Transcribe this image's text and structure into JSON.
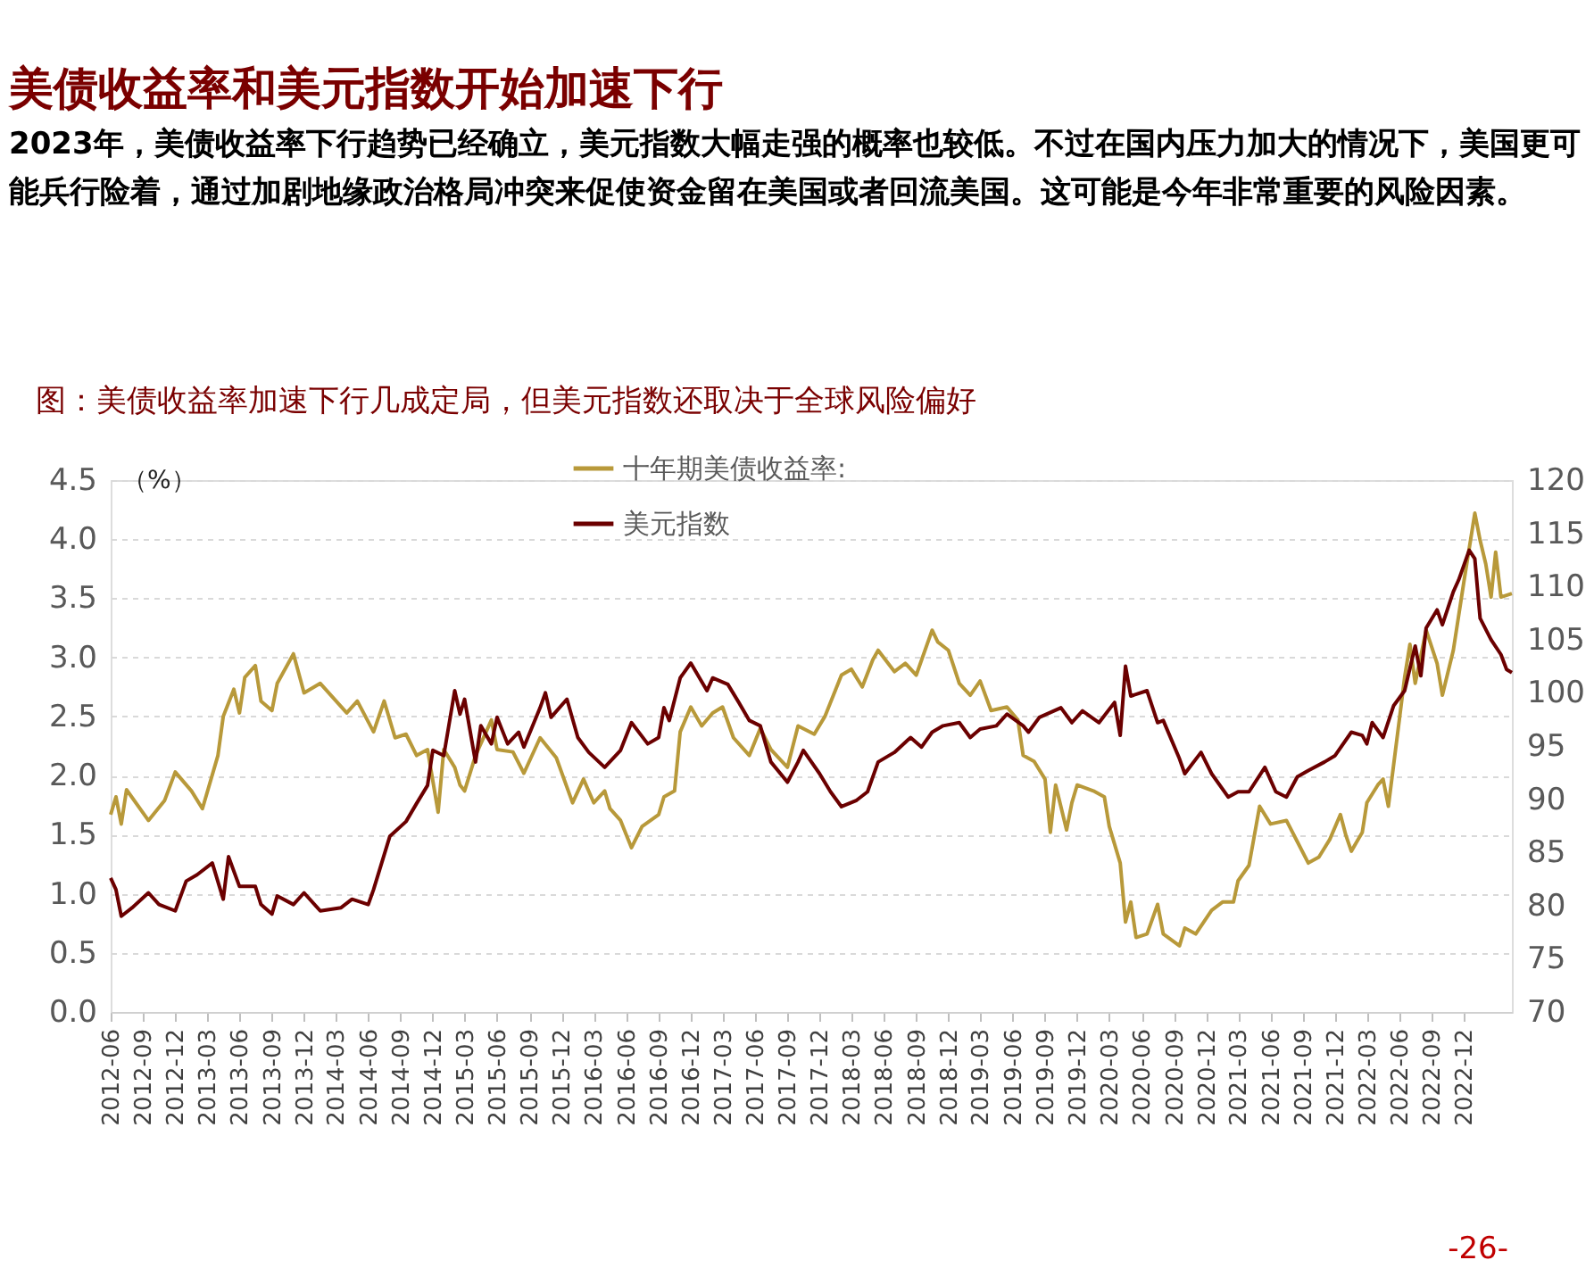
{
  "chart_data": {
    "type": "line",
    "title": "美债收益率和美元指数开始加速下行",
    "subtitle": "2023年，美债收益率下行趋势已经确立，美元指数大幅走强的概率也较低。不过在国内压力加大的情况下，美国更可能兵行险着，通过加剧地缘政治格局冲突来促使资金留在美国或者回流美国。这可能是今年非常重要的风险因素。",
    "annotations": [
      "图：美债收益率加速下行几成定局，但美元指数还取决于全球风险偏好",
      "-26-"
    ],
    "ylabel": "（%）",
    "xlim": [
      "2012-06-01",
      "2023-04-16"
    ],
    "xticks": [
      "2012-06",
      "2012-09",
      "2012-12",
      "2013-03",
      "2013-06",
      "2013-09",
      "2013-12",
      "2014-03",
      "2014-06",
      "2014-09",
      "2014-12",
      "2015-03",
      "2015-06",
      "2015-09",
      "2015-12",
      "2016-03",
      "2016-06",
      "2016-09",
      "2016-12",
      "2017-03",
      "2017-06",
      "2017-09",
      "2017-12",
      "2018-03",
      "2018-06",
      "2018-09",
      "2018-12",
      "2019-03",
      "2019-06",
      "2019-09",
      "2019-12",
      "2020-03",
      "2020-06",
      "2020-09",
      "2020-12",
      "2021-03",
      "2021-06",
      "2021-09",
      "2021-12",
      "2022-03",
      "2022-06",
      "2022-09",
      "2022-12"
    ],
    "ylim": [
      0,
      4.5
    ],
    "yticks": [
      {
        "value": 0,
        "label": "0.0"
      },
      0.5,
      {
        "value": 1,
        "label": "1.0"
      },
      1.5,
      {
        "value": 2,
        "label": "2.0"
      },
      2.5,
      {
        "value": 3,
        "label": "3.0"
      },
      3.5,
      {
        "value": 4,
        "label": "4.0"
      },
      4.5
    ],
    "y2lim": [
      70,
      120
    ],
    "y2ticks": [
      70,
      75,
      80,
      85,
      90,
      95,
      100,
      105,
      110,
      115,
      120
    ],
    "grid": "y",
    "legend": "top left",
    "line_style": "solid",
    "series": [
      {
        "name": "十年期美债收益率:",
        "color": "#b8993a",
        "x": [
          "2012-06-01",
          "2012-06-16",
          "2012-07-01",
          "2012-07-16",
          "2012-09-16",
          "2012-11-01",
          "2012-12-01",
          "2013-01-16",
          "2013-02-16",
          "2013-04-01",
          "2013-04-16",
          "2013-05-16",
          "2013-06-01",
          "2013-06-16",
          "2013-07-16",
          "2013-08-01",
          "2013-09-01",
          "2013-09-16",
          "2013-11-01",
          "2013-12-01",
          "2014-01-16",
          "2014-04-01",
          "2014-05-01",
          "2014-06-16",
          "2014-07-16",
          "2014-08-16",
          "2014-09-16",
          "2014-10-16",
          "2014-11-16",
          "2014-12-16",
          "2015-01-01",
          "2015-02-01",
          "2015-02-16",
          "2015-03-01",
          "2015-04-01",
          "2015-05-16",
          "2015-06-01",
          "2015-07-16",
          "2015-08-16",
          "2015-10-01",
          "2015-11-16",
          "2016-01-01",
          "2016-02-01",
          "2016-03-01",
          "2016-04-01",
          "2016-04-16",
          "2016-05-16",
          "2016-06-16",
          "2016-07-16",
          "2016-09-01",
          "2016-09-16",
          "2016-10-16",
          "2016-11-01",
          "2016-12-01",
          "2017-01-01",
          "2017-02-01",
          "2017-03-01",
          "2017-04-01",
          "2017-05-16",
          "2017-06-16",
          "2017-07-16",
          "2017-09-01",
          "2017-10-01",
          "2017-11-16",
          "2017-12-16",
          "2018-02-01",
          "2018-03-01",
          "2018-04-01",
          "2018-05-01",
          "2018-05-16",
          "2018-07-01",
          "2018-08-01",
          "2018-09-01",
          "2018-10-16",
          "2018-11-01",
          "2018-12-01",
          "2019-01-01",
          "2019-02-01",
          "2019-03-01",
          "2019-04-01",
          "2019-05-16",
          "2019-06-16",
          "2019-07-01",
          "2019-08-01",
          "2019-09-01",
          "2019-09-16",
          "2019-10-01",
          "2019-11-01",
          "2019-11-16",
          "2019-12-01",
          "2020-01-16",
          "2020-02-16",
          "2020-03-01",
          "2020-04-01",
          "2020-04-16",
          "2020-05-01",
          "2020-05-16",
          "2020-06-16",
          "2020-07-16",
          "2020-08-01",
          "2020-09-16",
          "2020-10-01",
          "2020-11-01",
          "2020-12-16",
          "2021-01-16",
          "2021-02-16",
          "2021-03-01",
          "2021-04-01",
          "2021-05-01",
          "2021-06-01",
          "2021-07-16",
          "2021-08-16",
          "2021-09-16",
          "2021-10-16",
          "2021-11-16",
          "2021-12-16",
          "2022-01-01",
          "2022-01-16",
          "2022-02-16",
          "2022-03-01",
          "2022-04-01",
          "2022-04-16",
          "2022-05-01",
          "2022-06-01",
          "2022-06-16",
          "2022-07-01",
          "2022-07-16",
          "2022-08-16",
          "2022-09-16",
          "2022-10-01",
          "2022-11-01",
          "2022-12-01",
          "2023-01-01",
          "2023-01-16",
          "2023-02-01",
          "2023-02-16",
          "2023-03-01",
          "2023-03-16",
          "2023-04-16"
        ],
        "values": [
          1.67,
          1.82,
          1.59,
          1.88,
          1.62,
          1.79,
          2.03,
          1.87,
          1.72,
          2.17,
          2.5,
          2.73,
          2.53,
          2.83,
          2.93,
          2.63,
          2.55,
          2.78,
          3.03,
          2.7,
          2.78,
          2.53,
          2.63,
          2.37,
          2.63,
          2.32,
          2.35,
          2.17,
          2.22,
          1.69,
          2.22,
          2.07,
          1.92,
          1.87,
          2.17,
          2.47,
          2.22,
          2.2,
          2.02,
          2.32,
          2.15,
          1.77,
          1.97,
          1.77,
          1.87,
          1.72,
          1.62,
          1.39,
          1.57,
          1.67,
          1.82,
          1.87,
          2.37,
          2.58,
          2.42,
          2.53,
          2.58,
          2.32,
          2.17,
          2.4,
          2.22,
          2.07,
          2.42,
          2.35,
          2.5,
          2.85,
          2.9,
          2.75,
          2.98,
          3.06,
          2.88,
          2.95,
          2.85,
          3.23,
          3.13,
          3.06,
          2.78,
          2.68,
          2.8,
          2.55,
          2.58,
          2.47,
          2.17,
          2.12,
          1.97,
          1.52,
          1.92,
          1.54,
          1.77,
          1.92,
          1.87,
          1.82,
          1.57,
          1.26,
          0.76,
          0.93,
          0.63,
          0.66,
          0.91,
          0.66,
          0.56,
          0.71,
          0.66,
          0.86,
          0.93,
          0.93,
          1.11,
          1.24,
          1.74,
          1.59,
          1.62,
          1.44,
          1.26,
          1.31,
          1.46,
          1.67,
          1.49,
          1.36,
          1.52,
          1.77,
          1.92,
          1.97,
          1.74,
          2.47,
          2.83,
          3.11,
          2.78,
          3.23,
          2.95,
          2.68,
          3.06,
          3.64,
          4.22,
          3.99,
          3.79,
          3.51,
          3.89,
          3.51,
          3.54
        ]
      },
      {
        "name": "美元指数",
        "color": "#6b0000",
        "axis": "y2",
        "x": [
          "2012-06-01",
          "2012-06-16",
          "2012-07-01",
          "2012-08-01",
          "2012-09-16",
          "2012-10-16",
          "2012-12-01",
          "2013-01-01",
          "2013-02-01",
          "2013-03-16",
          "2013-04-16",
          "2013-05-01",
          "2013-06-01",
          "2013-07-16",
          "2013-08-01",
          "2013-09-01",
          "2013-09-16",
          "2013-11-01",
          "2013-12-01",
          "2014-01-16",
          "2014-03-16",
          "2014-04-16",
          "2014-06-01",
          "2014-06-16",
          "2014-08-01",
          "2014-09-16",
          "2014-10-16",
          "2014-11-16",
          "2014-12-01",
          "2015-01-01",
          "2015-02-01",
          "2015-02-16",
          "2015-03-01",
          "2015-04-01",
          "2015-04-16",
          "2015-05-16",
          "2015-06-01",
          "2015-07-01",
          "2015-08-01",
          "2015-08-16",
          "2015-10-01",
          "2015-10-16",
          "2015-11-01",
          "2015-12-16",
          "2016-01-16",
          "2016-02-16",
          "2016-04-01",
          "2016-05-16",
          "2016-06-16",
          "2016-08-01",
          "2016-09-01",
          "2016-09-16",
          "2016-10-01",
          "2016-11-01",
          "2016-12-01",
          "2017-01-16",
          "2017-02-01",
          "2017-03-16",
          "2017-04-16",
          "2017-05-16",
          "2017-06-16",
          "2017-07-16",
          "2017-09-01",
          "2017-10-01",
          "2017-10-16",
          "2017-12-01",
          "2018-01-01",
          "2018-02-01",
          "2018-03-16",
          "2018-04-16",
          "2018-05-16",
          "2018-07-01",
          "2018-08-16",
          "2018-09-16",
          "2018-10-16",
          "2018-11-16",
          "2019-01-01",
          "2019-02-01",
          "2019-03-01",
          "2019-04-16",
          "2019-05-16",
          "2019-07-01",
          "2019-07-16",
          "2019-08-16",
          "2019-10-16",
          "2019-11-16",
          "2019-12-16",
          "2020-02-01",
          "2020-03-16",
          "2020-04-01",
          "2020-04-16",
          "2020-05-01",
          "2020-06-16",
          "2020-07-16",
          "2020-08-01",
          "2020-09-16",
          "2020-10-01",
          "2020-11-16",
          "2020-12-16",
          "2021-02-01",
          "2021-03-01",
          "2021-04-01",
          "2021-05-16",
          "2021-06-16",
          "2021-07-16",
          "2021-08-16",
          "2021-09-16",
          "2021-11-01",
          "2021-12-01",
          "2022-01-16",
          "2022-02-16",
          "2022-03-01",
          "2022-03-16",
          "2022-04-16",
          "2022-05-16",
          "2022-06-16",
          "2022-07-16",
          "2022-08-01",
          "2022-08-16",
          "2022-09-16",
          "2022-10-01",
          "2022-11-01",
          "2022-11-16",
          "2022-12-16",
          "2023-01-01",
          "2023-01-16",
          "2023-02-16",
          "2023-03-16",
          "2023-04-01",
          "2023-04-16"
        ],
        "values": [
          82.6,
          81.5,
          79.0,
          79.8,
          81.2,
          80.1,
          79.5,
          82.3,
          82.9,
          84.0,
          80.6,
          84.6,
          81.8,
          81.8,
          80.1,
          79.2,
          80.9,
          80.1,
          81.2,
          79.5,
          79.8,
          80.6,
          80.1,
          81.5,
          86.5,
          87.9,
          89.6,
          91.3,
          94.6,
          94.1,
          100.2,
          98.0,
          99.4,
          93.5,
          96.9,
          95.2,
          97.7,
          95.2,
          96.3,
          94.9,
          98.6,
          100.0,
          97.7,
          99.4,
          95.8,
          94.4,
          93.0,
          94.6,
          97.2,
          95.2,
          95.8,
          98.6,
          97.4,
          101.4,
          102.8,
          100.2,
          101.4,
          100.8,
          99.1,
          97.4,
          96.9,
          93.5,
          91.6,
          93.5,
          94.6,
          92.4,
          90.7,
          89.3,
          89.9,
          90.7,
          93.5,
          94.4,
          95.8,
          94.9,
          96.3,
          96.9,
          97.2,
          95.8,
          96.6,
          96.9,
          98.0,
          96.9,
          96.3,
          97.7,
          98.6,
          97.2,
          98.3,
          97.2,
          99.1,
          96.0,
          102.5,
          99.7,
          100.2,
          97.2,
          97.4,
          93.8,
          92.4,
          94.4,
          92.4,
          90.2,
          90.7,
          90.7,
          93.0,
          90.7,
          90.2,
          92.1,
          92.7,
          93.5,
          94.1,
          96.3,
          96.0,
          95.2,
          97.2,
          95.8,
          98.8,
          100.2,
          104.4,
          101.6,
          106.1,
          107.8,
          106.4,
          109.5,
          110.6,
          113.4,
          112.6,
          107.0,
          105.0,
          103.6,
          102.2,
          101.9
        ]
      }
    ]
  }
}
